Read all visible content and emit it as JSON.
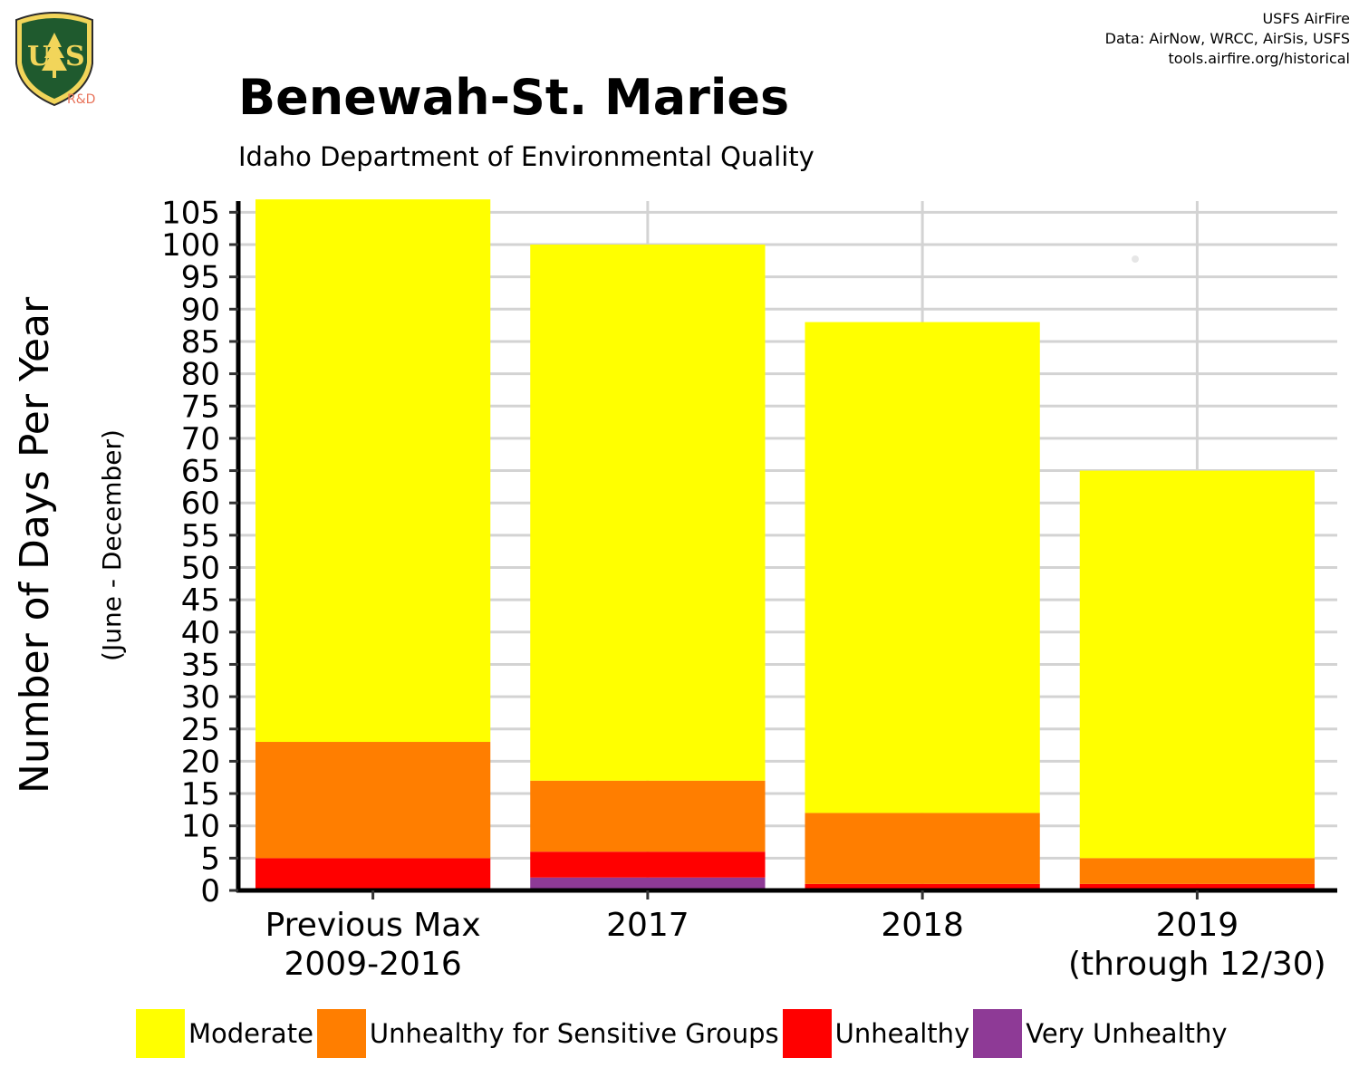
{
  "header": {
    "title": "Benewah-St. Maries",
    "subtitle": "Idaho Department of Environmental Quality",
    "credits": [
      "USFS AirFire",
      "Data: AirNow, WRCC, AirSis, USFS",
      "tools.airfire.org/historical"
    ],
    "logo_text": "R&D"
  },
  "chart_data": {
    "type": "bar",
    "stacked": true,
    "title": "Benewah-St. Maries",
    "subtitle": "Idaho Department of Environmental Quality",
    "ylabel": "Number of Days Per Year",
    "ylabel_sub": "(June - December)",
    "xlabel": "",
    "categories": [
      "Previous Max\n2009-2016",
      "2017",
      "2018",
      "2019\n(through 12/30)"
    ],
    "ylim": [
      0,
      107
    ],
    "yticks": [
      0,
      5,
      10,
      15,
      20,
      25,
      30,
      35,
      40,
      45,
      50,
      55,
      60,
      65,
      70,
      75,
      80,
      85,
      90,
      95,
      100,
      105
    ],
    "grid": true,
    "legend_position": "bottom",
    "series": [
      {
        "name": "Very Unhealthy",
        "color": "#8E3A96",
        "values": [
          0,
          2,
          0,
          0
        ]
      },
      {
        "name": "Unhealthy",
        "color": "#FF0000",
        "values": [
          5,
          4,
          1,
          1
        ]
      },
      {
        "name": "Unhealthy for Sensitive Groups",
        "color": "#FF7E00",
        "values": [
          18,
          11,
          11,
          4
        ]
      },
      {
        "name": "Moderate",
        "color": "#FFFF00",
        "values": [
          84,
          83,
          76,
          60
        ]
      }
    ],
    "legend_order": [
      "Moderate",
      "Unhealthy for Sensitive Groups",
      "Unhealthy",
      "Very Unhealthy"
    ]
  }
}
